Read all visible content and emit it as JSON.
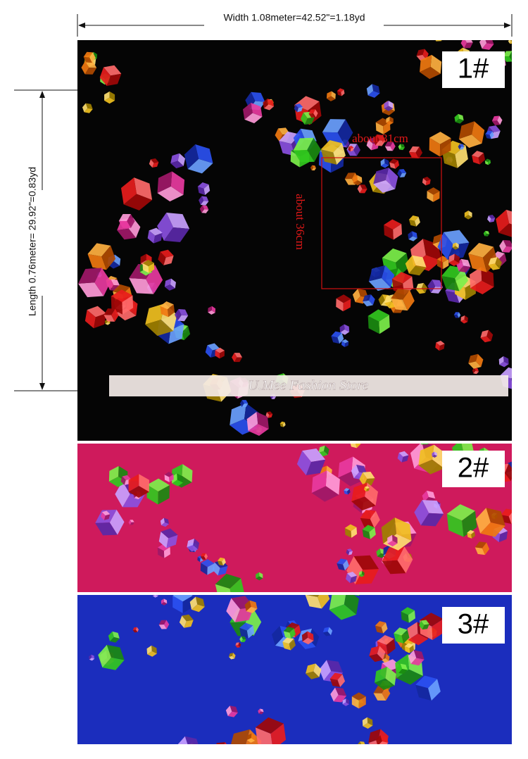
{
  "dimensions": {
    "width": "Width 1.08meter=42.52\"=1.18yd",
    "length": "Length 0.76meter= 29.92\"=0.83yd"
  },
  "samples": [
    {
      "label": "1#"
    },
    {
      "label": "2#"
    },
    {
      "label": "3#"
    }
  ],
  "annotations": {
    "repeat_width": "about 31cm",
    "repeat_length": "about 36cm"
  },
  "watermark": "U.Mee Fashion Store"
}
